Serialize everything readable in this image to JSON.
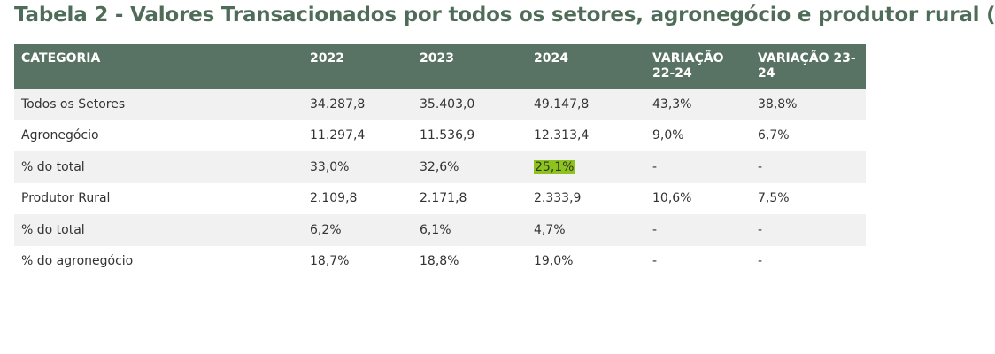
{
  "title": "Tabela 2 - Valores Transacionados por todos os setores, agronegócio e produtor rural (",
  "columns": {
    "c0": "CATEGORIA",
    "c1": "2022",
    "c2": "2023",
    "c3": "2024",
    "c4": "VARIAÇÃO 22-24",
    "c5": "VARIAÇÃO 23-24"
  },
  "rows": [
    {
      "cat": "Todos os Setores",
      "y2022": "34.287,8",
      "y2023": "35.403,0",
      "y2024": "49.147,8",
      "v2224": "43,3%",
      "v2324": "38,8%"
    },
    {
      "cat": "Agronegócio",
      "y2022": "11.297,4",
      "y2023": "11.536,9",
      "y2024": "12.313,4",
      "v2224": "9,0%",
      "v2324": "6,7%"
    },
    {
      "cat": "% do total",
      "y2022": "33,0%",
      "y2023": "32,6%",
      "y2024": "25,1%",
      "v2224": "-",
      "v2324": "-"
    },
    {
      "cat": "Produtor Rural",
      "y2022": "2.109,8",
      "y2023": "2.171,8",
      "y2024": "2.333,9",
      "v2224": "10,6%",
      "v2324": "7,5%"
    },
    {
      "cat": "% do total",
      "y2022": "6,2%",
      "y2023": "6,1%",
      "y2024": "4,7%",
      "v2224": "-",
      "v2324": "-"
    },
    {
      "cat": "% do agronegócio",
      "y2022": "18,7%",
      "y2023": "18,8%",
      "y2024": "19,0%",
      "v2224": "-",
      "v2324": "-"
    }
  ],
  "colors": {
    "header_bg": "#587363",
    "title": "#4f6c59",
    "highlight": "#8dc221"
  }
}
